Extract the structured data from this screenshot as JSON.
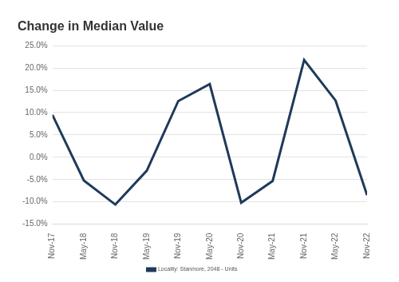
{
  "chart_data": {
    "type": "line",
    "title": "Change in Median Value",
    "categories": [
      "Nov-17",
      "May-18",
      "Nov-18",
      "May-19",
      "Nov-19",
      "May-20",
      "Nov-20",
      "May-21",
      "Nov-21",
      "May-22",
      "Nov-22"
    ],
    "series": [
      {
        "name": "Locality: Stanmore, 2048 - Units",
        "color": "#1f3a5a",
        "values": [
          9.5,
          -5.2,
          -10.6,
          -3.0,
          12.6,
          16.4,
          -10.2,
          -5.3,
          21.8,
          12.7,
          -8.5
        ]
      }
    ],
    "ylim": [
      -15,
      25
    ],
    "yticks": [
      {
        "value": -15,
        "label": "-15.0%"
      },
      {
        "value": -10,
        "label": "-10.0%"
      },
      {
        "value": -5,
        "label": "-5.0%"
      },
      {
        "value": 0,
        "label": "0.0%"
      },
      {
        "value": 5,
        "label": "5.0%"
      },
      {
        "value": 10,
        "label": "10.0%"
      },
      {
        "value": 15,
        "label": "15.0%"
      },
      {
        "value": 20,
        "label": "20.0%"
      },
      {
        "value": 25,
        "label": "25.0%"
      }
    ],
    "grid": true,
    "legend": "bottom"
  }
}
